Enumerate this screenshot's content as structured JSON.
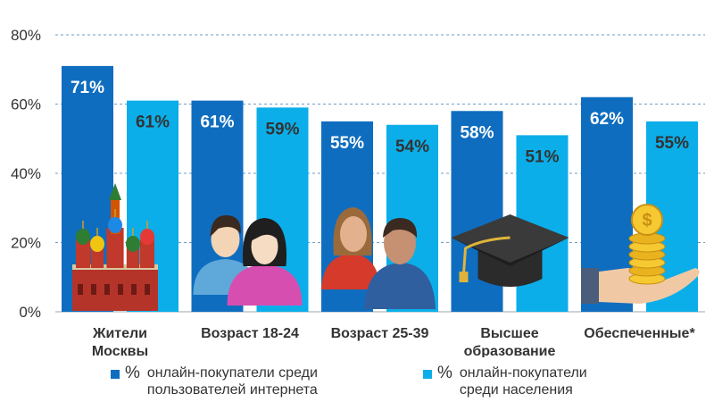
{
  "chart_data": {
    "type": "bar",
    "title": "",
    "xlabel": "",
    "ylabel": "",
    "ylim": [
      0,
      80
    ],
    "yticks": [
      "0%",
      "20%",
      "40%",
      "60%",
      "80%"
    ],
    "grid": true,
    "legend_position": "bottom",
    "categories": [
      "Жители\nМосквы",
      "Возраст 18-24",
      "Возраст 25-39",
      "Высшее\nобразование",
      "Обеспеченные*"
    ],
    "category_icons": [
      "kremlin-icon",
      "young-people-icon",
      "adults-icon",
      "graduation-cap-icon",
      "money-hand-icon"
    ],
    "series": [
      {
        "name": "онлайн-покупатели среди\nпользователей интернета",
        "values": [
          71,
          61,
          55,
          58,
          62
        ],
        "labels": [
          "71%",
          "61%",
          "55%",
          "58%",
          "62%"
        ],
        "color": "#0f6dbf",
        "label_color": "#ffffff"
      },
      {
        "name": "онлайн-покупатели\nсреди населения",
        "values": [
          61,
          59,
          54,
          51,
          55
        ],
        "labels": [
          "61%",
          "59%",
          "54%",
          "51%",
          "55%"
        ],
        "color": "#0baee9",
        "label_color": "#333333"
      }
    ]
  },
  "legend": [
    {
      "unit": "%",
      "label": "онлайн-покупатели среди\nпользователей интернета",
      "color": "#0f6dbf"
    },
    {
      "unit": "%",
      "label": "онлайн-покупатели\nсреди населения",
      "color": "#0baee9"
    }
  ]
}
